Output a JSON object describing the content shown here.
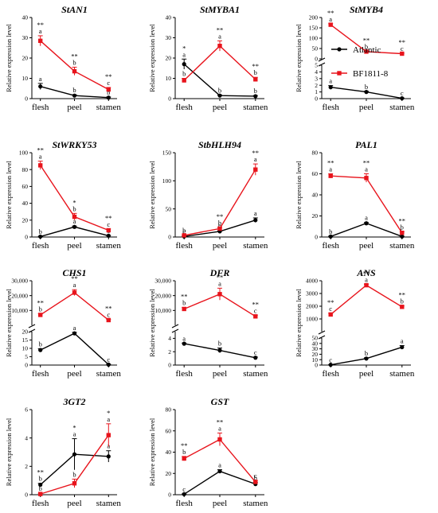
{
  "legend": {
    "position": "top-right",
    "entries": [
      {
        "name": "Atlantic",
        "color": "#000000",
        "marker": "circle"
      },
      {
        "name": "BF1811-8",
        "color": "#e8141c",
        "marker": "square"
      }
    ]
  },
  "colors": {
    "Atlantic": "#000000",
    "BF1811-8": "#e8141c"
  },
  "chart_data": [
    {
      "type": "line",
      "title": "StAN1",
      "ylabel": "Relative expression level",
      "categories": [
        "flesh",
        "peel",
        "stamen"
      ],
      "ylim": [
        0,
        40
      ],
      "yticks": [
        "0",
        "10",
        "20",
        "30",
        "40"
      ],
      "series": [
        {
          "name": "Atlantic",
          "values": [
            6,
            1.5,
            0.5
          ],
          "errors": [
            1.5,
            0.4,
            0.3
          ],
          "labels": [
            [
              "a"
            ],
            [
              "b"
            ],
            [
              "b"
            ]
          ]
        },
        {
          "name": "BF1811-8",
          "values": [
            28.5,
            13.5,
            4.5
          ],
          "errors": [
            2.5,
            2,
            1
          ],
          "labels": [
            [
              "**",
              "a"
            ],
            [
              "**",
              "b"
            ],
            [
              "**",
              "c"
            ]
          ]
        }
      ]
    },
    {
      "type": "line",
      "title": "StMYBA1",
      "ylabel": "Relative expression level",
      "categories": [
        "flesh",
        "peel",
        "stamen"
      ],
      "ylim": [
        0,
        40
      ],
      "yticks": [
        "0",
        "10",
        "20",
        "30",
        "40"
      ],
      "series": [
        {
          "name": "Atlantic",
          "values": [
            17,
            1.5,
            1.2
          ],
          "errors": [
            2.5,
            0.3,
            0.3
          ],
          "labels": [
            [
              "*",
              "a"
            ],
            [
              "b"
            ],
            [
              "b"
            ]
          ]
        },
        {
          "name": "BF1811-8",
          "values": [
            9,
            26,
            9.5
          ],
          "errors": [
            1,
            2.5,
            1
          ],
          "labels": [
            [
              "b"
            ],
            [
              "**",
              "a"
            ],
            [
              "**",
              "b"
            ]
          ]
        }
      ]
    },
    {
      "type": "line",
      "title": "StMYB4",
      "ylabel": "Relative expression level",
      "categories": [
        "flesh",
        "peel",
        "stamen"
      ],
      "broken_axis": {
        "lower": [
          0,
          5
        ],
        "upper": [
          0,
          200
        ]
      },
      "yticks_lower": [
        "0",
        "1",
        "2",
        "3",
        "4",
        "5"
      ],
      "yticks_upper": [
        "0",
        "50",
        "100",
        "150",
        "200"
      ],
      "series": [
        {
          "name": "Atlantic",
          "values": [
            1.7,
            1.0,
            0.05
          ],
          "errors": [
            0.25,
            0.1,
            0.05
          ],
          "labels": [
            [
              "a"
            ],
            [
              "b"
            ],
            [
              "c"
            ]
          ]
        },
        {
          "name": "BF1811-8",
          "values": [
            165,
            35,
            25
          ],
          "errors": [
            5,
            2,
            2
          ],
          "labels": [
            [
              "**",
              "a"
            ],
            [
              "**",
              "b"
            ],
            [
              "**",
              "c"
            ]
          ]
        }
      ]
    },
    {
      "type": "line",
      "title": "StWRKY53",
      "ylabel": "Relative expression level",
      "categories": [
        "flesh",
        "peel",
        "stamen"
      ],
      "ylim": [
        0,
        100
      ],
      "yticks": [
        "0",
        "20",
        "40",
        "60",
        "80",
        "100"
      ],
      "series": [
        {
          "name": "Atlantic",
          "values": [
            0.5,
            12,
            1.5
          ],
          "errors": [
            0.3,
            1,
            0.3
          ],
          "labels": [
            [
              "b"
            ],
            [
              "a"
            ],
            [
              "c"
            ]
          ]
        },
        {
          "name": "BF1811-8",
          "values": [
            85,
            24,
            8
          ],
          "errors": [
            5,
            4,
            1.5
          ],
          "labels": [
            [
              "**",
              "a"
            ],
            [
              "*",
              "b"
            ],
            [
              "**",
              "c"
            ]
          ]
        }
      ]
    },
    {
      "type": "line",
      "title": "StbHLH94",
      "ylabel": "Relative expression level",
      "categories": [
        "flesh",
        "peel",
        "stamen"
      ],
      "ylim": [
        0,
        150
      ],
      "yticks": [
        "0",
        "50",
        "100",
        "150"
      ],
      "series": [
        {
          "name": "Atlantic",
          "values": [
            1,
            10,
            30
          ],
          "errors": [
            0.5,
            1,
            4
          ],
          "labels": [
            [
              "c"
            ],
            [
              "b"
            ],
            [
              "a"
            ]
          ]
        },
        {
          "name": "BF1811-8",
          "values": [
            3,
            15,
            120
          ],
          "errors": [
            0.5,
            2,
            10
          ],
          "labels": [
            [
              "b"
            ],
            [
              "**",
              "b"
            ],
            [
              "**",
              "a"
            ]
          ]
        }
      ]
    },
    {
      "type": "line",
      "title": "PAL1",
      "ylabel": "Relative expression level",
      "categories": [
        "flesh",
        "peel",
        "stamen"
      ],
      "ylim": [
        0,
        80
      ],
      "yticks": [
        "0",
        "20",
        "40",
        "60",
        "80"
      ],
      "series": [
        {
          "name": "Atlantic",
          "values": [
            0.5,
            13,
            0.5
          ],
          "errors": [
            0.3,
            0.8,
            0.3
          ],
          "labels": [
            [
              "b"
            ],
            [
              "a"
            ],
            [
              "b"
            ]
          ]
        },
        {
          "name": "BF1811-8",
          "values": [
            58,
            56,
            4
          ],
          "errors": [
            2,
            4,
            1
          ],
          "labels": [
            [
              "**",
              "a"
            ],
            [
              "**",
              "a"
            ],
            [
              "**",
              "b"
            ]
          ]
        }
      ]
    },
    {
      "type": "line",
      "title": "CHS1",
      "ylabel": "Relative expression level",
      "categories": [
        "flesh",
        "peel",
        "stamen"
      ],
      "broken_axis": {
        "lower": [
          0,
          20
        ],
        "upper": [
          0,
          30000
        ]
      },
      "yticks_lower": [
        "0",
        "5",
        "10",
        "15",
        "20"
      ],
      "yticks_upper": [
        "10,000",
        "20,000",
        "30,000"
      ],
      "series": [
        {
          "name": "Atlantic",
          "values": [
            9,
            19,
            0.3
          ],
          "errors": [
            0.8,
            0.6,
            0.2
          ],
          "labels": [
            [
              "b"
            ],
            [
              "a"
            ],
            [
              "c"
            ]
          ]
        },
        {
          "name": "BF1811-8",
          "values": [
            7000,
            22000,
            3500
          ],
          "errors": [
            800,
            2000,
            500
          ],
          "labels": [
            [
              "**",
              "b"
            ],
            [
              "**",
              "a"
            ],
            [
              "**",
              "c"
            ]
          ]
        }
      ]
    },
    {
      "type": "line",
      "title": "DFR",
      "ylabel": "Relative expression level",
      "categories": [
        "flesh",
        "peel",
        "stamen"
      ],
      "broken_axis": {
        "lower": [
          0,
          5
        ],
        "upper": [
          0,
          30000
        ]
      },
      "yticks_lower": [
        "0",
        "2",
        "4"
      ],
      "yticks_upper": [
        "10,000",
        "20,000",
        "30,000"
      ],
      "series": [
        {
          "name": "Atlantic",
          "values": [
            3.2,
            2.2,
            1.1
          ],
          "errors": [
            0.1,
            0.35,
            0.1
          ],
          "labels": [
            [
              "a"
            ],
            [
              "b"
            ],
            [
              "c"
            ]
          ]
        },
        {
          "name": "BF1811-8",
          "values": [
            11000,
            21000,
            6000
          ],
          "errors": [
            1000,
            4000,
            800
          ],
          "labels": [
            [
              "**",
              "b"
            ],
            [
              "**",
              "a"
            ],
            [
              "**",
              "c"
            ]
          ]
        }
      ]
    },
    {
      "type": "line",
      "title": "ANS",
      "ylabel": "Relative expression level",
      "categories": [
        "flesh",
        "peel",
        "stamen"
      ],
      "broken_axis": {
        "lower": [
          0,
          50
        ],
        "upper": [
          0,
          4000
        ]
      },
      "yticks_lower": [
        "0",
        "10",
        "20",
        "30",
        "40",
        "50"
      ],
      "yticks_upper": [
        "1000",
        "2000",
        "3000",
        "4000"
      ],
      "series": [
        {
          "name": "Atlantic",
          "values": [
            0.5,
            12,
            33
          ],
          "errors": [
            0.3,
            1.5,
            3
          ],
          "labels": [
            [
              "c"
            ],
            [
              "b"
            ],
            [
              "a"
            ]
          ]
        },
        {
          "name": "BF1811-8",
          "values": [
            1350,
            3650,
            1950
          ],
          "errors": [
            100,
            80,
            70
          ],
          "labels": [
            [
              "**",
              "c"
            ],
            [
              "**",
              "a"
            ],
            [
              "**",
              "b"
            ]
          ]
        }
      ]
    },
    {
      "type": "line",
      "title": "3GT2",
      "ylabel": "Relative expression level",
      "categories": [
        "flesh",
        "peel",
        "stamen"
      ],
      "ylim": [
        0,
        6
      ],
      "yticks": [
        "0",
        "2",
        "4",
        "6"
      ],
      "series": [
        {
          "name": "Atlantic",
          "values": [
            0.7,
            2.85,
            2.7
          ],
          "errors": [
            0.1,
            1.1,
            0.4
          ],
          "labels": [
            [
              "**",
              "b"
            ],
            [
              "*",
              "a"
            ],
            [
              "a"
            ]
          ]
        },
        {
          "name": "BF1811-8",
          "values": [
            0.05,
            0.8,
            4.2
          ],
          "errors": [
            0.05,
            0.3,
            0.8
          ],
          "labels": [
            [
              "b"
            ],
            [
              "b"
            ],
            [
              "*",
              "a"
            ]
          ]
        }
      ]
    },
    {
      "type": "line",
      "title": "GST",
      "ylabel": "Relative expression level",
      "categories": [
        "flesh",
        "peel",
        "stamen"
      ],
      "ylim": [
        0,
        80
      ],
      "yticks": [
        "0",
        "20",
        "40",
        "60",
        "80"
      ],
      "series": [
        {
          "name": "Atlantic",
          "values": [
            0.5,
            22,
            10
          ],
          "errors": [
            0.3,
            1.5,
            1.5
          ],
          "labels": [
            [
              "c"
            ],
            [
              "a"
            ],
            [
              "b"
            ]
          ]
        },
        {
          "name": "BF1811-8",
          "values": [
            34,
            52,
            12
          ],
          "errors": [
            2,
            6,
            1.5
          ],
          "labels": [
            [
              "**",
              "b"
            ],
            [
              "**",
              "a"
            ],
            [
              "c"
            ]
          ]
        }
      ]
    }
  ]
}
